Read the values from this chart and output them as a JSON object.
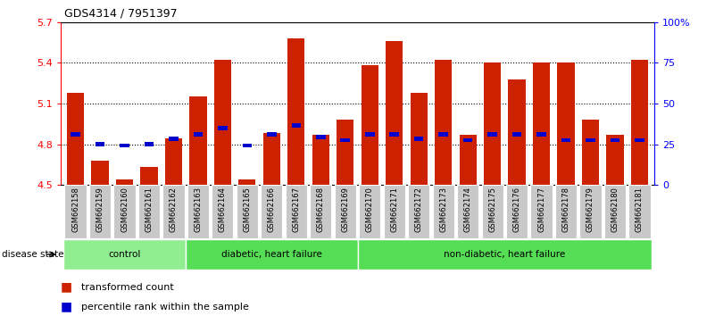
{
  "title": "GDS4314 / 7951397",
  "samples": [
    "GSM662158",
    "GSM662159",
    "GSM662160",
    "GSM662161",
    "GSM662162",
    "GSM662163",
    "GSM662164",
    "GSM662165",
    "GSM662166",
    "GSM662167",
    "GSM662168",
    "GSM662169",
    "GSM662170",
    "GSM662171",
    "GSM662172",
    "GSM662173",
    "GSM662174",
    "GSM662175",
    "GSM662176",
    "GSM662177",
    "GSM662178",
    "GSM662179",
    "GSM662180",
    "GSM662181"
  ],
  "red_values": [
    5.18,
    4.68,
    4.54,
    4.63,
    4.84,
    5.15,
    5.42,
    4.54,
    4.88,
    5.58,
    4.87,
    4.98,
    5.38,
    5.56,
    5.18,
    5.42,
    4.87,
    5.4,
    5.28,
    5.4,
    5.4,
    4.98,
    4.87,
    5.42
  ],
  "blue_values": [
    4.87,
    4.8,
    4.79,
    4.8,
    4.84,
    4.87,
    4.92,
    4.79,
    4.87,
    4.94,
    4.85,
    4.83,
    4.87,
    4.87,
    4.84,
    4.87,
    4.83,
    4.87,
    4.87,
    4.87,
    4.83,
    4.83,
    4.83,
    4.83
  ],
  "ylim_left": [
    4.5,
    5.7
  ],
  "ylim_right": [
    0,
    100
  ],
  "yticks_left": [
    4.5,
    4.8,
    5.1,
    5.4,
    5.7
  ],
  "yticks_right": [
    0,
    25,
    50,
    75,
    100
  ],
  "ytick_labels_right": [
    "0",
    "25",
    "50",
    "75",
    "100%"
  ],
  "bar_color": "#CC2200",
  "blue_marker_color": "#0000CC",
  "legend_red": "transformed count",
  "legend_blue": "percentile rank within the sample",
  "disease_state_label": "disease state",
  "group_ranges": [
    [
      0,
      4,
      "control",
      "#90EE90"
    ],
    [
      5,
      11,
      "diabetic, heart failure",
      "#55DD55"
    ],
    [
      12,
      23,
      "non-diabetic, heart failure",
      "#55DD55"
    ]
  ]
}
